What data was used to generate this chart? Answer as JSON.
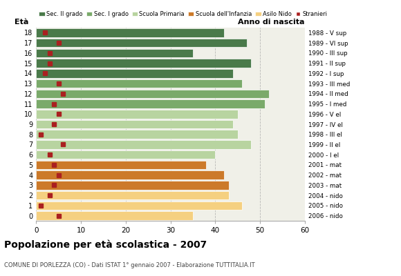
{
  "ages": [
    18,
    17,
    16,
    15,
    14,
    13,
    12,
    11,
    10,
    9,
    8,
    7,
    6,
    5,
    4,
    3,
    2,
    1,
    0
  ],
  "bar_values": [
    42,
    47,
    35,
    48,
    44,
    46,
    52,
    51,
    45,
    44,
    45,
    48,
    40,
    38,
    42,
    43,
    43,
    46,
    35
  ],
  "stranieri": [
    2,
    5,
    3,
    3,
    2,
    5,
    6,
    4,
    5,
    4,
    1,
    6,
    3,
    4,
    5,
    4,
    3,
    1,
    5
  ],
  "right_labels": [
    "1988 - V sup",
    "1989 - VI sup",
    "1990 - III sup",
    "1991 - II sup",
    "1992 - I sup",
    "1993 - III med",
    "1994 - II med",
    "1995 - I med",
    "1996 - V el",
    "1997 - IV el",
    "1998 - III el",
    "1999 - II el",
    "2000 - I el",
    "2001 - mat",
    "2002 - mat",
    "2003 - mat",
    "2004 - nido",
    "2005 - nido",
    "2006 - nido"
  ],
  "bar_colors": [
    "#4a7a4a",
    "#4a7a4a",
    "#4a7a4a",
    "#4a7a4a",
    "#4a7a4a",
    "#7aaa6a",
    "#7aaa6a",
    "#7aaa6a",
    "#b8d4a0",
    "#b8d4a0",
    "#b8d4a0",
    "#b8d4a0",
    "#b8d4a0",
    "#cc7a2a",
    "#cc7a2a",
    "#cc7a2a",
    "#f5d080",
    "#f5d080",
    "#f5d080"
  ],
  "legend_colors": [
    "#4a7a4a",
    "#7aaa6a",
    "#b8d4a0",
    "#cc7a2a",
    "#f5d080",
    "#aa2020"
  ],
  "legend_labels": [
    "Sec. II grado",
    "Sec. I grado",
    "Scuola Primaria",
    "Scuola dell'Infanzia",
    "Asilo Nido",
    "Stranieri"
  ],
  "title": "Popolazione per età scolastica - 2007",
  "subtitle": "COMUNE DI PORLEZZA (CO) - Dati ISTAT 1° gennaio 2007 - Elaborazione TUTTITALIA.IT",
  "ylabel_eta": "Età",
  "ylabel_anno": "Anno di nascita",
  "xlim": [
    0,
    60
  ],
  "xticks": [
    0,
    10,
    20,
    30,
    40,
    50,
    60
  ],
  "stranieri_color": "#aa2020"
}
